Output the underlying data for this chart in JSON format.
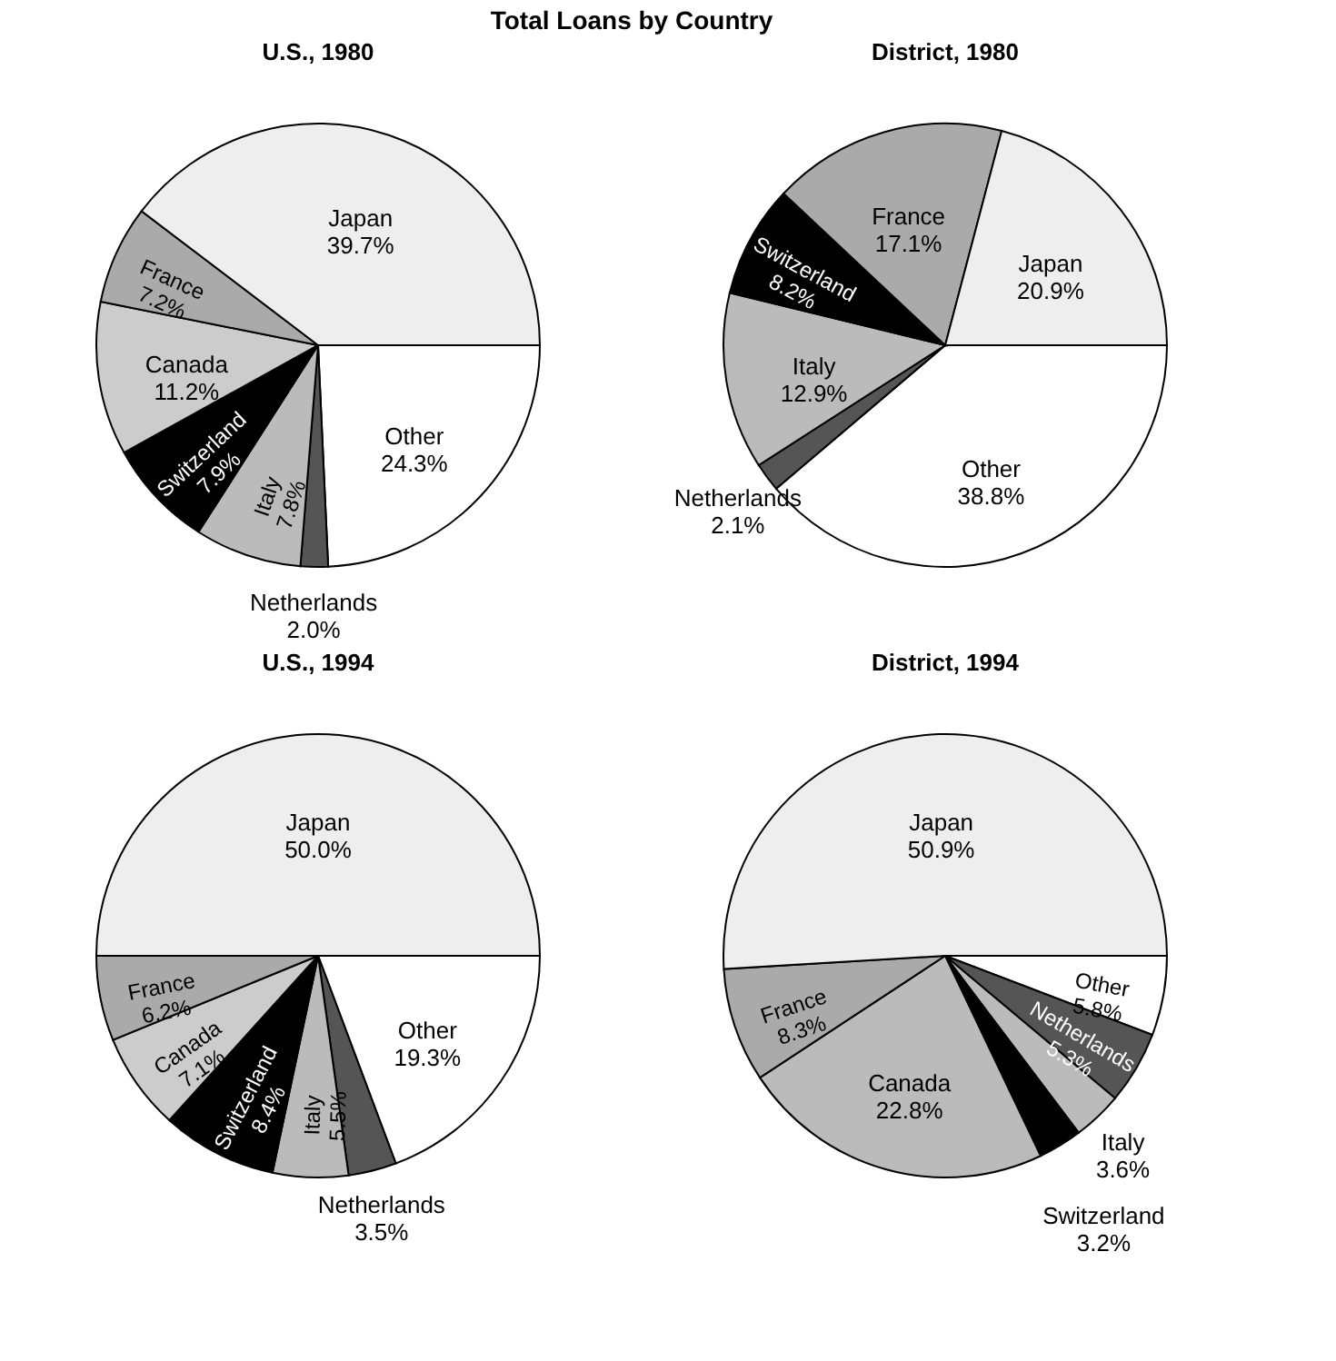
{
  "chart_data": [
    {
      "type": "pie",
      "title": "Total Loans by Country",
      "subtitle": "U.S., 1980",
      "categories": [
        "Other",
        "Netherlands",
        "Italy",
        "Switzerland",
        "Canada",
        "France",
        "Japan"
      ],
      "values": [
        24.3,
        2.0,
        7.8,
        7.9,
        11.2,
        7.2,
        39.7
      ],
      "value_labels": [
        "24.3%",
        "2.0%",
        "7.8%",
        "7.9%",
        "11.2%",
        "7.2%",
        "39.7%"
      ],
      "colors": [
        "#ffffff",
        "#555555",
        "#bbbbbb",
        "#000000",
        "#cccccc",
        "#aaaaaa",
        "#eeeeee"
      ]
    },
    {
      "type": "pie",
      "title": "District, 1980",
      "categories": [
        "Other",
        "Netherlands",
        "Italy",
        "Switzerland",
        "France",
        "Japan"
      ],
      "values": [
        38.8,
        2.1,
        12.9,
        8.2,
        17.1,
        20.9
      ],
      "value_labels": [
        "38.8%",
        "2.1%",
        "12.9%",
        "8.2%",
        "17.1%",
        "20.9%"
      ],
      "colors": [
        "#ffffff",
        "#555555",
        "#bbbbbb",
        "#000000",
        "#aaaaaa",
        "#eeeeee"
      ]
    },
    {
      "type": "pie",
      "title": "U.S., 1994",
      "categories": [
        "Other",
        "Netherlands",
        "Italy",
        "Switzerland",
        "Canada",
        "France",
        "Japan"
      ],
      "values": [
        19.3,
        3.5,
        5.5,
        8.4,
        7.1,
        6.2,
        50.0
      ],
      "value_labels": [
        "19.3%",
        "3.5%",
        "5.5%",
        "8.4%",
        "7.1%",
        "6.2%",
        "50.0%"
      ],
      "colors": [
        "#ffffff",
        "#555555",
        "#bbbbbb",
        "#000000",
        "#cccccc",
        "#aaaaaa",
        "#eeeeee"
      ]
    },
    {
      "type": "pie",
      "title": "District, 1994",
      "categories": [
        "Other",
        "Netherlands",
        "Italy",
        "Switzerland",
        "Canada",
        "France",
        "Japan"
      ],
      "values": [
        5.8,
        5.3,
        3.6,
        3.2,
        22.8,
        8.3,
        50.9
      ],
      "value_labels": [
        "5.8%",
        "5.3%",
        "3.6%",
        "3.2%",
        "22.8%",
        "8.3%",
        "50.9%"
      ],
      "colors": [
        "#ffffff",
        "#555555",
        "#bbbbbb",
        "#000000",
        "#bbbbbb",
        "#aaaaaa",
        "#eeeeee"
      ]
    }
  ]
}
